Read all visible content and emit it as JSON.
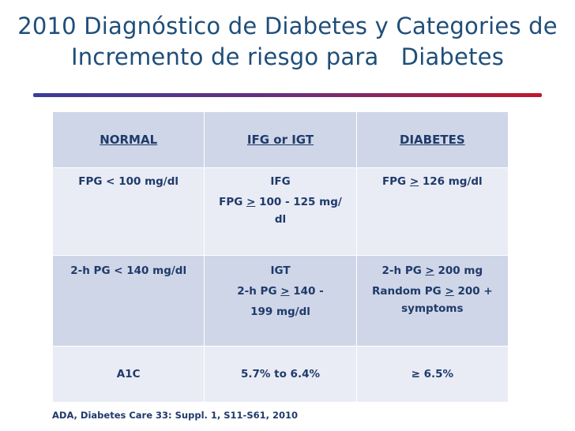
{
  "slide": {
    "title_line1": "2010 Diagnóstico de Diabetes y Categories de",
    "title_line2": "Incremento de riesgo para   Diabetes"
  },
  "table": {
    "headers": [
      "NORMAL",
      "IFG or IGT",
      "DIABETES"
    ],
    "fpg": {
      "normal": "FPG < 100 mg/dl",
      "ifg_label": "IFG",
      "ifg_prefix": "FPG ",
      "ifg_symbol": ">",
      "ifg_value": " 100 - 125 mg/",
      "ifg_unit_tail": "dl",
      "diabetes_prefix": "FPG ",
      "diabetes_symbol": ">",
      "diabetes_value": " 126 mg/dl"
    },
    "two_hour": {
      "normal": "2-h PG < 140 mg/dl",
      "igt_label": "IGT",
      "igt_prefix": "2-h PG ",
      "igt_symbol": ">",
      "igt_value": " 140 -",
      "igt_value_tail": "199 mg/dl",
      "diabetes_line1_prefix": "2-h PG ",
      "diabetes_line1_symbol": ">",
      "diabetes_line1_value": " 200 mg",
      "diabetes_line2_prefix": "Random PG ",
      "diabetes_line2_symbol": ">",
      "diabetes_line2_value": " 200 +",
      "diabetes_line3": "symptoms"
    },
    "a1c": {
      "label": "A1C",
      "risk": "5.7% to 6.4%",
      "diabetes": "≥ 6.5%"
    }
  },
  "source": "ADA, Diabetes Care 33: Suppl. 1, S11-S61, 2010"
}
